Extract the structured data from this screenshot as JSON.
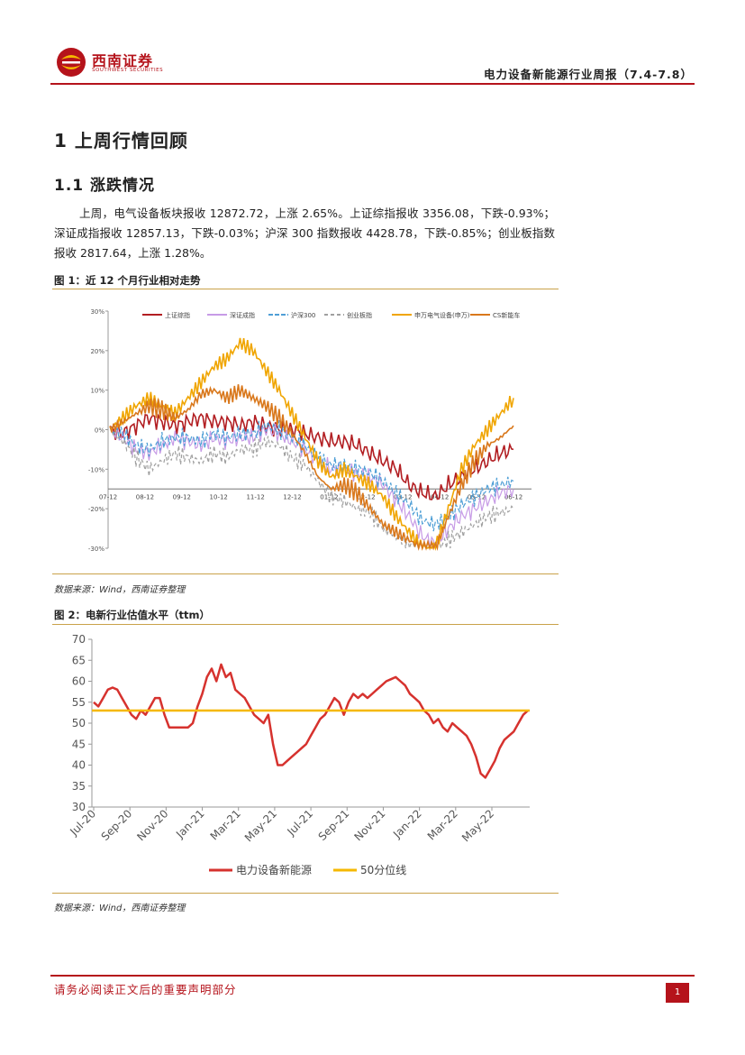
{
  "header": {
    "logo_cn": "西南证券",
    "logo_en": "SOUTHWEST SECURITIES",
    "report_title": "电力设备新能源行业周报（7.4-7.8）"
  },
  "section": {
    "h1": "1  上周行情回顾",
    "h2": "1.1 涨跌情况",
    "paragraph": "上周，电气设备板块报收 12872.72，上涨 2.65%。上证综指报收 3356.08，下跌-0.93%；深证成指报收 12857.13，下跌-0.03%；沪深 300 指数报收 4428.78，下跌-0.85%；创业板指数报收 2817.64，上涨 1.28%。"
  },
  "figure1": {
    "title": "图 1：近 12 个月行业相对走势",
    "source": "数据来源：Wind，西南证券整理"
  },
  "figure2": {
    "title": "图 2：电新行业估值水平（ttm）",
    "source": "数据来源：Wind，西南证券整理"
  },
  "footer": {
    "disclaimer": "请务必阅读正文后的重要声明部分",
    "page": "1"
  },
  "colors": {
    "brand": "#b5131b",
    "rule": "#c9a24a",
    "series_red": "#b21e22",
    "series_purple": "#c79be6",
    "series_blue": "#4f9fd6",
    "series_gray": "#a0a0a0",
    "series_gold": "#f0a500",
    "series_orange": "#d9781c",
    "pe_line": "#d6322e",
    "median_line": "#f5b800"
  },
  "chart_data": [
    {
      "type": "line",
      "title": "近 12 个月行业相对走势",
      "x_ticks": [
        "07-12",
        "08-12",
        "09-12",
        "10-12",
        "11-12",
        "12-12",
        "01-12",
        "02-12",
        "03-12",
        "04-12",
        "05-12",
        "06-12"
      ],
      "y_ticks": [
        "30%",
        "20%",
        "10%",
        "0%",
        "-10%",
        "-20%",
        "-30%"
      ],
      "ylim": [
        -30,
        30
      ],
      "legend_position": "top",
      "series": [
        {
          "name": "上证综指",
          "values": [
            0,
            -1,
            1,
            3,
            2,
            1,
            2,
            3,
            2,
            2,
            1,
            2,
            1,
            0,
            0,
            -1,
            -2,
            -3,
            -3,
            -4,
            -6,
            -8,
            -10,
            -14,
            -16,
            -17,
            -14,
            -12,
            -10,
            -8,
            -6,
            -5
          ]
        },
        {
          "name": "深证成指",
          "values": [
            0,
            -2,
            -5,
            -6,
            -4,
            -2,
            -3,
            -4,
            -2,
            -3,
            -2,
            -2,
            0,
            -1,
            -3,
            -5,
            -8,
            -10,
            -10,
            -11,
            -12,
            -14,
            -18,
            -22,
            -27,
            -29,
            -25,
            -22,
            -20,
            -18,
            -16,
            -15
          ]
        },
        {
          "name": "沪深300",
          "values": [
            0,
            -1,
            -4,
            -5,
            -3,
            -2,
            -2,
            -3,
            -1,
            -2,
            -1,
            -1,
            1,
            0,
            -2,
            -4,
            -7,
            -9,
            -9,
            -10,
            -11,
            -13,
            -16,
            -19,
            -23,
            -24,
            -22,
            -19,
            -17,
            -15,
            -14,
            -13
          ]
        },
        {
          "name": "创业板指",
          "values": [
            0,
            -3,
            -7,
            -10,
            -8,
            -6,
            -7,
            -8,
            -6,
            -7,
            -5,
            -5,
            -3,
            -4,
            -7,
            -9,
            -13,
            -17,
            -18,
            -20,
            -21,
            -25,
            -27,
            -29,
            -30,
            -30,
            -28,
            -26,
            -24,
            -22,
            -21,
            -20
          ]
        },
        {
          "name": "申万电气设备(申万)",
          "values": [
            0,
            3,
            6,
            8,
            6,
            4,
            8,
            12,
            16,
            18,
            22,
            20,
            15,
            10,
            4,
            -2,
            -8,
            -12,
            -10,
            -12,
            -14,
            -17,
            -22,
            -26,
            -30,
            -30,
            -20,
            -10,
            -4,
            0,
            4,
            8
          ]
        },
        {
          "name": "CS新能车",
          "values": [
            0,
            2,
            4,
            6,
            5,
            3,
            5,
            9,
            10,
            8,
            10,
            8,
            6,
            3,
            -1,
            -6,
            -12,
            -15,
            -14,
            -16,
            -20,
            -24,
            -26,
            -28,
            -30,
            -30,
            -22,
            -14,
            -8,
            -4,
            -2,
            1
          ]
        }
      ]
    },
    {
      "type": "line",
      "title": "电新行业估值水平（ttm）",
      "x_ticks": [
        "Jul-20",
        "Sep-20",
        "Nov-20",
        "Jan-21",
        "Mar-21",
        "May-21",
        "Jul-21",
        "Sep-21",
        "Nov-21",
        "Jan-22",
        "Mar-22",
        "May-22"
      ],
      "y_ticks": [
        "70",
        "65",
        "60",
        "55",
        "50",
        "45",
        "40",
        "35",
        "30"
      ],
      "ylim": [
        30,
        70
      ],
      "legend_position": "bottom",
      "series": [
        {
          "name": "电力设备新能源",
          "values": [
            55,
            54,
            56,
            58,
            58.5,
            58,
            56,
            54,
            52,
            51,
            53,
            52,
            54,
            56,
            56,
            52,
            49,
            49,
            49,
            49,
            49,
            50,
            54,
            57,
            61,
            63,
            60,
            64,
            61,
            62,
            58,
            57,
            56,
            54,
            52,
            51,
            50,
            52,
            45,
            40,
            40,
            41,
            42,
            43,
            44,
            45,
            47,
            49,
            51,
            52,
            54,
            56,
            55,
            52,
            55,
            57,
            56,
            57,
            56,
            57,
            58,
            59,
            60,
            60.5,
            61,
            60,
            59,
            57,
            56,
            55,
            53,
            52,
            50,
            51,
            49,
            48,
            50,
            49,
            48,
            47,
            45,
            42,
            38,
            37,
            39,
            41,
            44,
            46,
            47,
            48,
            50,
            52,
            53
          ]
        },
        {
          "name": "50分位线",
          "values": [
            53,
            53
          ]
        }
      ]
    }
  ]
}
